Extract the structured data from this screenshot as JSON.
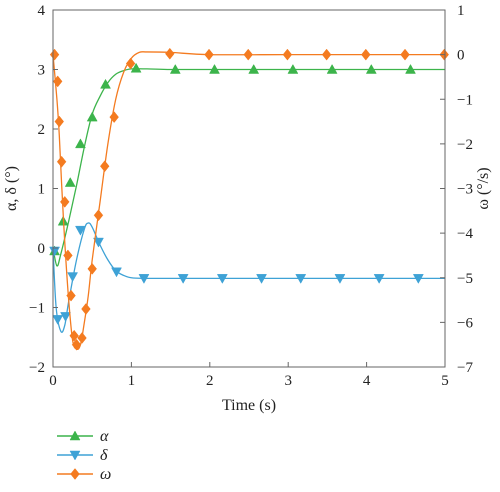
{
  "chart_data": {
    "type": "line",
    "title": "",
    "xlabel": "Time (s)",
    "ylabel_left": "α, δ (°)",
    "ylabel_right": "ω (°/s)",
    "xlim": [
      0,
      5
    ],
    "ylim_left": [
      -2,
      4
    ],
    "ylim_right": [
      -7,
      1
    ],
    "x_ticks": [
      0,
      1,
      2,
      3,
      4,
      5
    ],
    "y_left_ticks": [
      -2,
      -1,
      0,
      1,
      2,
      3,
      4
    ],
    "y_right_ticks": [
      -7,
      -6,
      -5,
      -4,
      -3,
      -2,
      -1,
      0,
      1
    ],
    "grid": false,
    "legend_position": "below",
    "series": [
      {
        "name": "α",
        "axis": "left",
        "color": "#3cb44b",
        "marker": "triangle-up",
        "curve": [
          [
            0,
            0
          ],
          [
            0.05,
            -0.3
          ],
          [
            0.1,
            -0.1
          ],
          [
            0.2,
            0.45
          ],
          [
            0.3,
            1.05
          ],
          [
            0.4,
            1.7
          ],
          [
            0.5,
            2.25
          ],
          [
            0.6,
            2.55
          ],
          [
            0.7,
            2.78
          ],
          [
            0.8,
            2.92
          ],
          [
            0.9,
            2.98
          ],
          [
            1.0,
            3.01
          ],
          [
            1.2,
            3.01
          ],
          [
            1.5,
            3.0
          ],
          [
            2.0,
            3.0
          ],
          [
            3.0,
            3.0
          ],
          [
            4.0,
            3.0
          ],
          [
            5.0,
            3.0
          ]
        ],
        "markers": [
          [
            0.02,
            -0.05
          ],
          [
            0.13,
            0.45
          ],
          [
            0.22,
            1.1
          ],
          [
            0.35,
            1.75
          ],
          [
            0.5,
            2.2
          ],
          [
            0.67,
            2.75
          ],
          [
            1.06,
            3.02
          ],
          [
            1.56,
            3.0
          ],
          [
            2.06,
            3.0
          ],
          [
            2.56,
            3.0
          ],
          [
            3.06,
            3.0
          ],
          [
            3.56,
            3.0
          ],
          [
            4.06,
            3.0
          ],
          [
            4.56,
            3.0
          ]
        ]
      },
      {
        "name": "δ",
        "axis": "left",
        "color": "#3ea2d6",
        "marker": "triangle-down",
        "curve": [
          [
            0,
            0
          ],
          [
            0.04,
            -1.0
          ],
          [
            0.1,
            -1.4
          ],
          [
            0.15,
            -1.3
          ],
          [
            0.2,
            -0.9
          ],
          [
            0.3,
            -0.2
          ],
          [
            0.4,
            0.32
          ],
          [
            0.45,
            0.42
          ],
          [
            0.5,
            0.35
          ],
          [
            0.6,
            0.05
          ],
          [
            0.7,
            -0.2
          ],
          [
            0.8,
            -0.38
          ],
          [
            0.9,
            -0.46
          ],
          [
            1.0,
            -0.5
          ],
          [
            1.2,
            -0.51
          ],
          [
            2.0,
            -0.51
          ],
          [
            3.0,
            -0.51
          ],
          [
            4.0,
            -0.51
          ],
          [
            5.0,
            -0.51
          ]
        ],
        "markers": [
          [
            0.02,
            -0.05
          ],
          [
            0.06,
            -1.2
          ],
          [
            0.16,
            -1.15
          ],
          [
            0.25,
            -0.48
          ],
          [
            0.35,
            0.3
          ],
          [
            0.58,
            0.1
          ],
          [
            0.81,
            -0.4
          ],
          [
            1.16,
            -0.51
          ],
          [
            1.66,
            -0.51
          ],
          [
            2.16,
            -0.51
          ],
          [
            2.66,
            -0.51
          ],
          [
            3.16,
            -0.51
          ],
          [
            3.66,
            -0.51
          ],
          [
            4.16,
            -0.51
          ],
          [
            4.66,
            -0.51
          ]
        ]
      },
      {
        "name": "ω",
        "axis": "right",
        "color": "#f47b20",
        "marker": "diamond",
        "curve": [
          [
            0,
            0
          ],
          [
            0.05,
            -1.0
          ],
          [
            0.08,
            -1.8
          ],
          [
            0.11,
            -2.9
          ],
          [
            0.15,
            -4.2
          ],
          [
            0.2,
            -5.5
          ],
          [
            0.25,
            -6.4
          ],
          [
            0.3,
            -6.6
          ],
          [
            0.35,
            -6.5
          ],
          [
            0.4,
            -6.0
          ],
          [
            0.45,
            -5.4
          ],
          [
            0.5,
            -4.6
          ],
          [
            0.6,
            -3.3
          ],
          [
            0.7,
            -2.0
          ],
          [
            0.8,
            -1.0
          ],
          [
            0.9,
            -0.4
          ],
          [
            1.0,
            -0.08
          ],
          [
            1.1,
            0.05
          ],
          [
            1.2,
            0.06
          ],
          [
            1.5,
            0.05
          ],
          [
            2.0,
            0.0
          ],
          [
            3.0,
            0.0
          ],
          [
            4.0,
            0.0
          ],
          [
            5.0,
            0.0
          ]
        ],
        "markers": [
          [
            0.02,
            0.0
          ],
          [
            0.06,
            -0.6
          ],
          [
            0.08,
            -1.5
          ],
          [
            0.11,
            -2.4
          ],
          [
            0.15,
            -3.3
          ],
          [
            0.19,
            -4.5
          ],
          [
            0.23,
            -5.4
          ],
          [
            0.27,
            -6.3
          ],
          [
            0.3,
            -6.5
          ],
          [
            0.37,
            -6.35
          ],
          [
            0.42,
            -5.7
          ],
          [
            0.5,
            -4.8
          ],
          [
            0.58,
            -3.6
          ],
          [
            0.66,
            -2.5
          ],
          [
            0.78,
            -1.4
          ],
          [
            0.99,
            -0.2
          ],
          [
            1.49,
            0.02
          ],
          [
            1.99,
            0.0
          ],
          [
            2.49,
            0.0
          ],
          [
            2.99,
            0.0
          ],
          [
            3.49,
            0.0
          ],
          [
            3.99,
            0.0
          ],
          [
            4.49,
            0.0
          ],
          [
            4.99,
            0.0
          ]
        ]
      }
    ]
  }
}
